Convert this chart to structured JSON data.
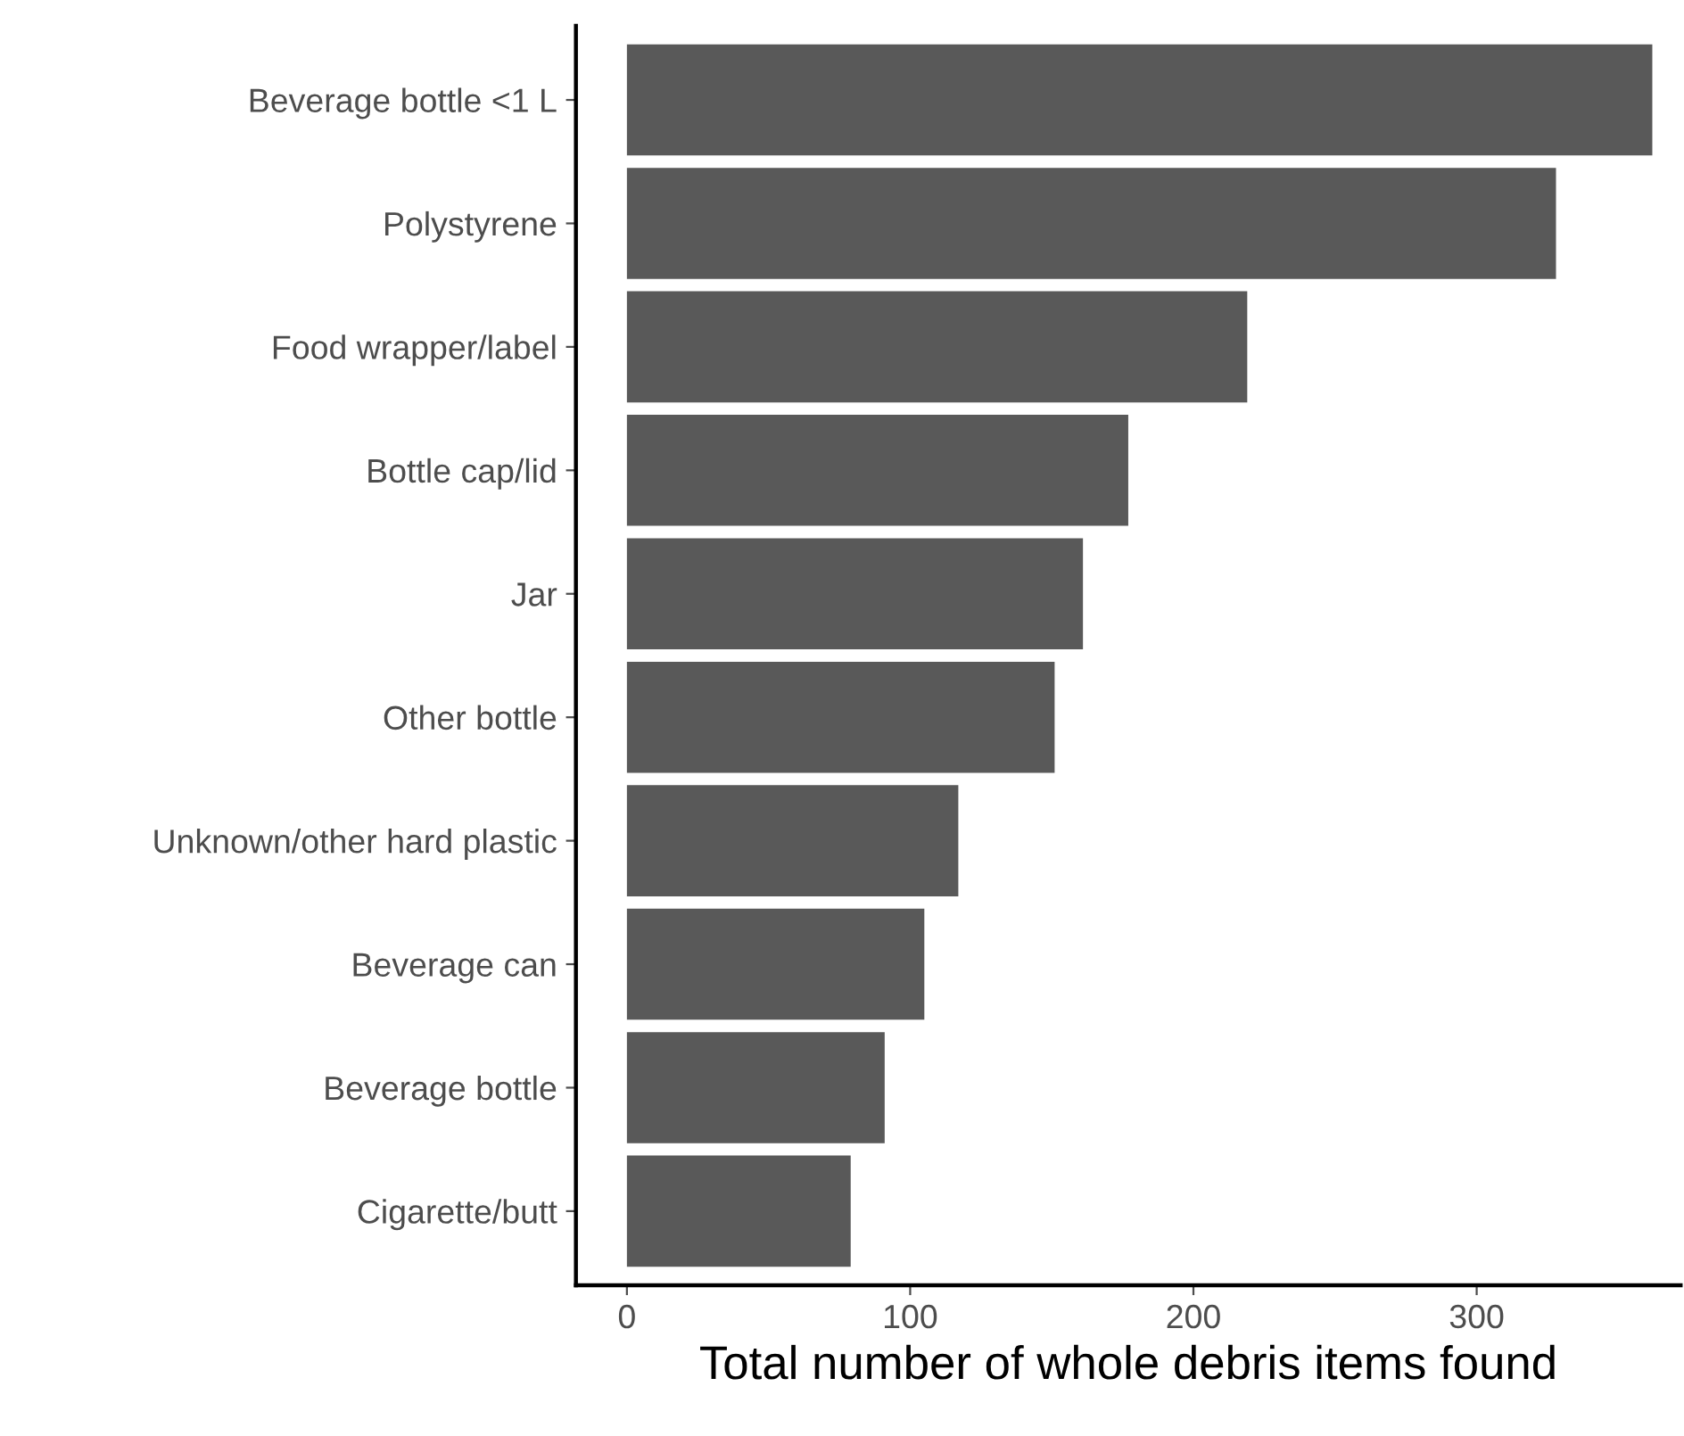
{
  "chart_data": {
    "type": "bar",
    "orientation": "horizontal",
    "xlabel": "Total number of whole debris items found",
    "categories": [
      "Beverage bottle <1 L",
      "Polystyrene",
      "Food wrapper/label",
      "Bottle cap/lid",
      "Jar",
      "Other bottle",
      "Unknown/other hard plastic",
      "Beverage can",
      "Beverage bottle",
      "Cigarette/butt"
    ],
    "values": [
      362,
      328,
      219,
      177,
      161,
      151,
      117,
      105,
      91,
      79
    ],
    "color": "#595959",
    "xlim": [
      -18,
      372
    ],
    "xticks": [
      0,
      100,
      200,
      300
    ],
    "grid": false
  }
}
